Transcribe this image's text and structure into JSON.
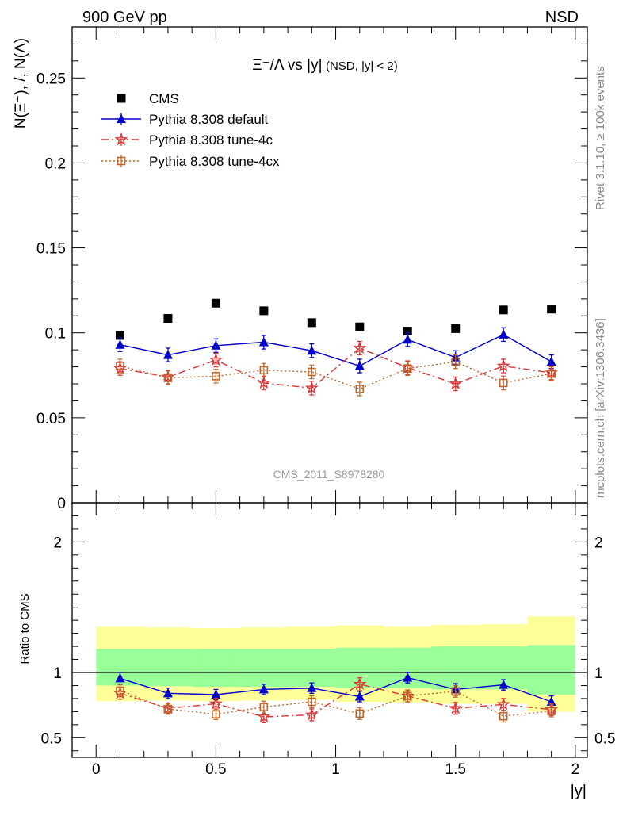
{
  "header": {
    "left": "900 GeV pp",
    "right": "NSD"
  },
  "side_labels": {
    "rivet": "Rivet 3.1.10, ≥ 100k events",
    "mcplots": "mcplots.cern.ch [arXiv:1306.3436]"
  },
  "watermark": "CMS_2011_S8978280",
  "chart_data": [
    {
      "type": "scatter",
      "title_main": "Ξ⁻/Λ vs |y|",
      "title_sub": "(NSD, |y| < 2)",
      "ylabel": "N(Ξ⁻), /, N(Λ)",
      "xlim": [
        -0.1,
        2.05
      ],
      "ylim": [
        0,
        0.28
      ],
      "y_ticks": [
        0,
        0.05,
        0.1,
        0.15,
        0.2,
        0.25
      ],
      "y_tick_labels": [
        "0",
        "0.05",
        "0.1",
        "0.15",
        "0.2",
        "0.25"
      ],
      "x": [
        0.1,
        0.3,
        0.5,
        0.7,
        0.9,
        1.1,
        1.3,
        1.5,
        1.7,
        1.9
      ],
      "legend": [
        "CMS",
        "Pythia 8.308 default",
        "Pythia 8.308 tune-4c",
        "Pythia 8.308 tune-4cx"
      ],
      "series": [
        {
          "name": "CMS",
          "color": "#000000",
          "marker": "square",
          "values": [
            0.0985,
            0.1085,
            0.1175,
            0.113,
            0.106,
            0.1035,
            0.101,
            0.1025,
            0.1135,
            0.114
          ]
        },
        {
          "name": "Pythia 8.308 default",
          "color": "#0000cc",
          "marker": "triangle",
          "line": "solid",
          "values": [
            0.093,
            0.087,
            0.0925,
            0.0945,
            0.0895,
            0.0805,
            0.096,
            0.0855,
            0.099,
            0.083
          ],
          "errors": [
            0.004,
            0.004,
            0.004,
            0.004,
            0.004,
            0.004,
            0.004,
            0.004,
            0.004,
            0.004
          ]
        },
        {
          "name": "Pythia 8.308 tune-4c",
          "color": "#dd3333",
          "marker": "star",
          "line": "dashdot",
          "values": [
            0.079,
            0.074,
            0.084,
            0.0705,
            0.0675,
            0.091,
            0.0795,
            0.07,
            0.0805,
            0.0765
          ],
          "errors": [
            0.004,
            0.004,
            0.004,
            0.004,
            0.004,
            0.004,
            0.004,
            0.004,
            0.004,
            0.004
          ]
        },
        {
          "name": "Pythia 8.308 tune-4cx",
          "color": "#c0652a",
          "marker": "open-square",
          "line": "dotted",
          "values": [
            0.0805,
            0.0735,
            0.0745,
            0.078,
            0.077,
            0.067,
            0.079,
            0.083,
            0.0705,
            0.076
          ],
          "errors": [
            0.004,
            0.004,
            0.004,
            0.004,
            0.004,
            0.004,
            0.004,
            0.004,
            0.004,
            0.004
          ]
        }
      ]
    },
    {
      "type": "scatter",
      "ylabel": "Ratio to CMS",
      "xlabel": "|y|",
      "xlim": [
        -0.1,
        2.05
      ],
      "ylim": [
        0.35,
        2.3
      ],
      "y_ticks": [
        0.5,
        1,
        2
      ],
      "y_tick_labels": [
        "0.5",
        "1",
        "2"
      ],
      "x_ticks": [
        0,
        0.5,
        1,
        1.5,
        2
      ],
      "x_tick_labels": [
        "0",
        "0.5",
        "1",
        "1.5",
        "2"
      ],
      "x": [
        0.1,
        0.3,
        0.5,
        0.7,
        0.9,
        1.1,
        1.3,
        1.5,
        1.7,
        1.9
      ],
      "bin_edges": [
        0.0,
        0.2,
        0.4,
        0.6,
        0.8,
        1.0,
        1.2,
        1.4,
        1.6,
        1.8,
        2.0
      ],
      "bands": {
        "inner_color": "#99ff99",
        "outer_color": "#ffff99",
        "inner_low": [
          0.9,
          0.895,
          0.89,
          0.89,
          0.89,
          0.88,
          0.88,
          0.87,
          0.87,
          0.83
        ],
        "inner_high": [
          1.18,
          1.18,
          1.18,
          1.18,
          1.18,
          1.19,
          1.19,
          1.2,
          1.2,
          1.21
        ],
        "outer_low": [
          0.78,
          0.785,
          0.78,
          0.785,
          0.79,
          0.775,
          0.77,
          0.76,
          0.76,
          0.7
        ],
        "outer_high": [
          1.35,
          1.345,
          1.34,
          1.345,
          1.35,
          1.36,
          1.35,
          1.365,
          1.37,
          1.43
        ]
      },
      "series": [
        {
          "name": "Pythia 8.308 default",
          "color": "#0000cc",
          "marker": "triangle",
          "line": "solid",
          "values": [
            0.955,
            0.84,
            0.83,
            0.87,
            0.88,
            0.815,
            0.96,
            0.87,
            0.905,
            0.775
          ],
          "errors": [
            0.045,
            0.04,
            0.04,
            0.04,
            0.04,
            0.04,
            0.04,
            0.045,
            0.04,
            0.045
          ]
        },
        {
          "name": "Pythia 8.308 tune-4c",
          "color": "#dd3333",
          "marker": "star",
          "line": "dashdot",
          "values": [
            0.84,
            0.725,
            0.76,
            0.66,
            0.675,
            0.91,
            0.82,
            0.725,
            0.755,
            0.715
          ],
          "errors": [
            0.045,
            0.04,
            0.04,
            0.045,
            0.045,
            0.05,
            0.045,
            0.045,
            0.045,
            0.045
          ]
        },
        {
          "name": "Pythia 8.308 tune-4cx",
          "color": "#c0652a",
          "marker": "open-square",
          "line": "dotted",
          "values": [
            0.86,
            0.72,
            0.68,
            0.735,
            0.775,
            0.685,
            0.82,
            0.855,
            0.665,
            0.705
          ],
          "errors": [
            0.045,
            0.04,
            0.04,
            0.045,
            0.045,
            0.045,
            0.045,
            0.045,
            0.045,
            0.045
          ]
        }
      ]
    }
  ]
}
